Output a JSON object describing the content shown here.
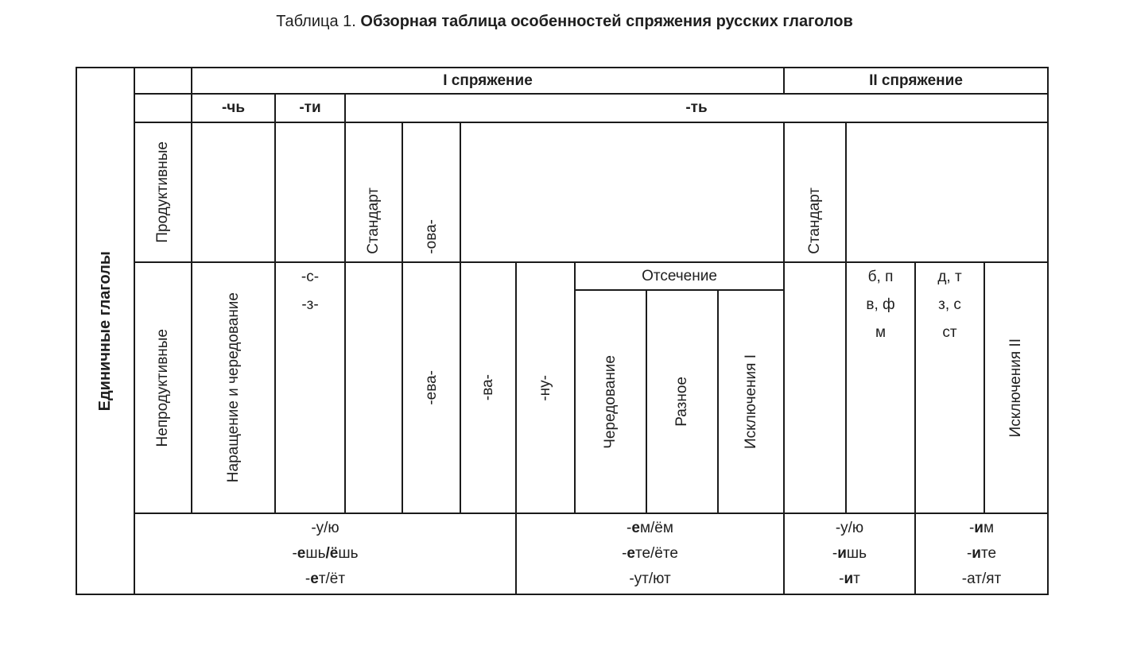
{
  "page": {
    "title_prefix": "Таблица 1. ",
    "title_main": "Обзорная таблица особенностей спряжения русских глаголов"
  },
  "table": {
    "group_label": "Единичные глаголы",
    "header": {
      "conj1": "I спряжение",
      "conj2": "II спряжение",
      "inf_ch": "-чь",
      "inf_ti": "-ти",
      "inf_t": "-ть"
    },
    "rows": {
      "productive": "Продуктивные",
      "nonproductive": "Непродуктивные"
    },
    "conj1": {
      "standard": "Стандарт",
      "ova": "-ова-",
      "narashchenie": "Наращение и чередование",
      "s_z": "-с-\n-з-",
      "eva": "-ева-",
      "va": "-ва-",
      "nu": "-ну-",
      "otsechenie": "Отсечение",
      "cheredovanie": "Чередование",
      "raznoe": "Разное",
      "isklyucheniya_1": "Исключения I"
    },
    "conj2": {
      "standard": "Стандарт",
      "labial_consonants": "б, п\nв, ф\nм",
      "dental_consonants": "д, т\nз, с\nст",
      "isklyucheniya_2": "Исключения II"
    },
    "endings": {
      "conj1_sg": [
        [
          {
            "t": "-у/ю"
          }
        ],
        [
          {
            "t": "-"
          },
          {
            "t": "е",
            "b": true
          },
          {
            "t": "шь"
          },
          {
            "t": "/",
            "b": true
          },
          {
            "t": "ё",
            "b": true
          },
          {
            "t": "шь"
          }
        ],
        [
          {
            "t": "-"
          },
          {
            "t": "е",
            "b": true
          },
          {
            "t": "т/ёт"
          }
        ]
      ],
      "conj1_pl": [
        [
          {
            "t": "-"
          },
          {
            "t": "е",
            "b": true
          },
          {
            "t": "м/ём"
          }
        ],
        [
          {
            "t": "-"
          },
          {
            "t": "е",
            "b": true
          },
          {
            "t": "те/ёте"
          }
        ],
        [
          {
            "t": "-ут/ют"
          }
        ]
      ],
      "conj2_sg": [
        [
          {
            "t": "-у/ю"
          }
        ],
        [
          {
            "t": "-"
          },
          {
            "t": "и",
            "b": true
          },
          {
            "t": "шь"
          }
        ],
        [
          {
            "t": "-"
          },
          {
            "t": "и",
            "b": true
          },
          {
            "t": "т"
          }
        ]
      ],
      "conj2_pl": [
        [
          {
            "t": "-"
          },
          {
            "t": "и",
            "b": true
          },
          {
            "t": "м"
          }
        ],
        [
          {
            "t": "-"
          },
          {
            "t": "и",
            "b": true
          },
          {
            "t": "те"
          }
        ],
        [
          {
            "t": "-ат/ят"
          }
        ]
      ]
    }
  }
}
